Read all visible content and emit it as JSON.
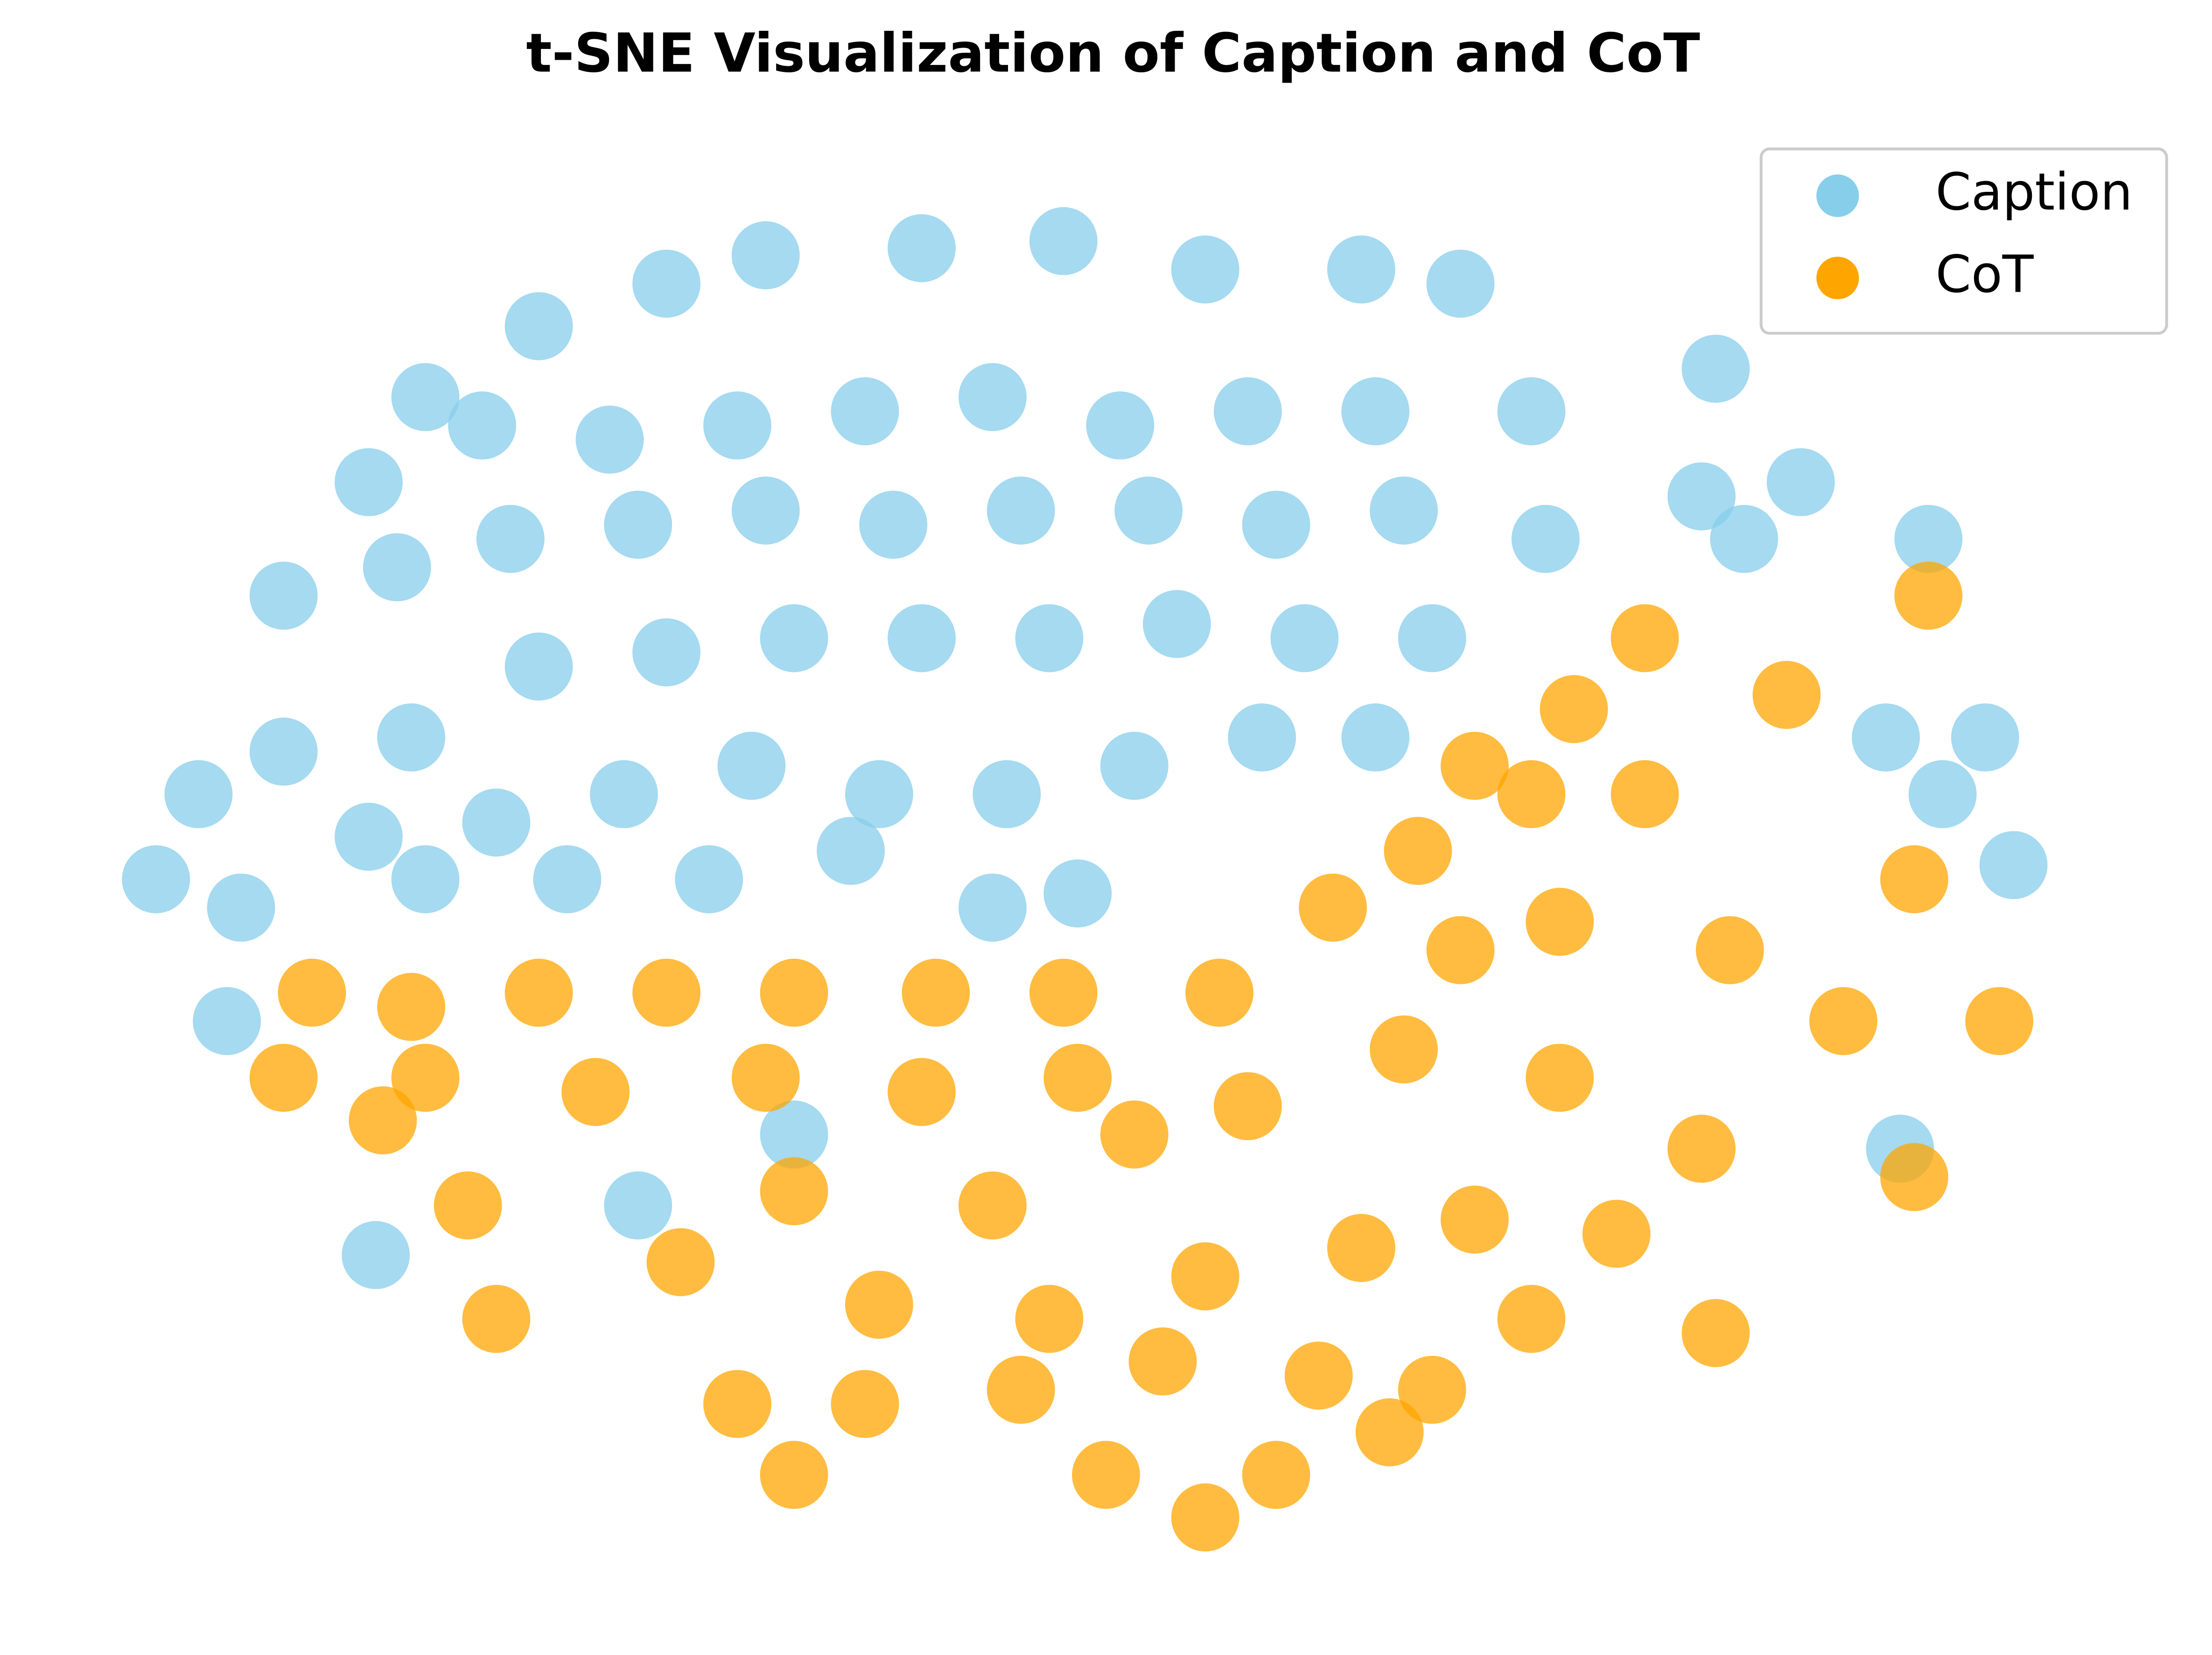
{
  "chart_data": {
    "type": "scatter",
    "title": "t-SNE Visualization of Caption and CoT",
    "xlim": [
      0,
      1400
    ],
    "ylim": [
      0,
      985
    ],
    "legend": "upper right",
    "series": [
      {
        "name": "Caption",
        "color": "#87ceeb",
        "x": [
          215,
          295,
          385,
          455,
          565,
          665,
          765,
          875,
          945,
          1125,
          175,
          255,
          345,
          435,
          525,
          615,
          705,
          795,
          885,
          995,
          115,
          195,
          275,
          365,
          455,
          545,
          635,
          725,
          815,
          905,
          1005,
          1115,
          1185,
          1275,
          55,
          115,
          205,
          295,
          385,
          475,
          565,
          655,
          745,
          835,
          925,
          25,
          85,
          175,
          265,
          355,
          445,
          535,
          625,
          715,
          805,
          885,
          215,
          315,
          415,
          515,
          615,
          675,
          1245,
          1315,
          1335,
          1285,
          1145,
          180,
          365,
          475,
          75,
          1255
        ],
        "values": [
          830,
          880,
          910,
          930,
          935,
          940,
          920,
          920,
          910,
          850,
          770,
          810,
          800,
          810,
          820,
          830,
          810,
          820,
          820,
          820,
          690,
          710,
          730,
          740,
          750,
          740,
          750,
          750,
          740,
          750,
          730,
          760,
          770,
          730,
          550,
          580,
          590,
          640,
          650,
          660,
          660,
          660,
          670,
          660,
          660,
          490,
          470,
          520,
          530,
          550,
          570,
          550,
          550,
          570,
          590,
          590,
          490,
          490,
          490,
          510,
          470,
          480,
          590,
          590,
          500,
          550,
          730,
          225,
          260,
          310,
          390,
          300
        ]
      },
      {
        "name": "CoT",
        "color": "#ffa500",
        "x": [
          135,
          205,
          295,
          385,
          475,
          575,
          665,
          115,
          215,
          335,
          455,
          565,
          675,
          775,
          855,
          915,
          995,
          1075,
          1075,
          1175,
          1275,
          945,
          1015,
          1135,
          1215,
          1325,
          1265,
          1115,
          1015,
          905,
          795,
          715,
          615,
          475,
          395,
          265,
          245,
          185,
          535,
          655,
          765,
          875,
          955,
          1055,
          1125,
          435,
          525,
          635,
          735,
          845,
          925,
          995,
          765,
          695,
          815,
          475,
          895,
          955,
          1025,
          1265
        ],
        "values": [
          410,
          400,
          410,
          410,
          410,
          410,
          410,
          350,
          350,
          340,
          350,
          340,
          350,
          410,
          470,
          510,
          550,
          550,
          660,
          620,
          690,
          440,
          460,
          440,
          390,
          390,
          280,
          300,
          350,
          370,
          330,
          310,
          260,
          270,
          220,
          180,
          260,
          320,
          190,
          180,
          210,
          230,
          250,
          240,
          170,
          120,
          120,
          130,
          150,
          140,
          130,
          180,
          40,
          70,
          70,
          70,
          100,
          570,
          610,
          490
        ]
      }
    ]
  }
}
